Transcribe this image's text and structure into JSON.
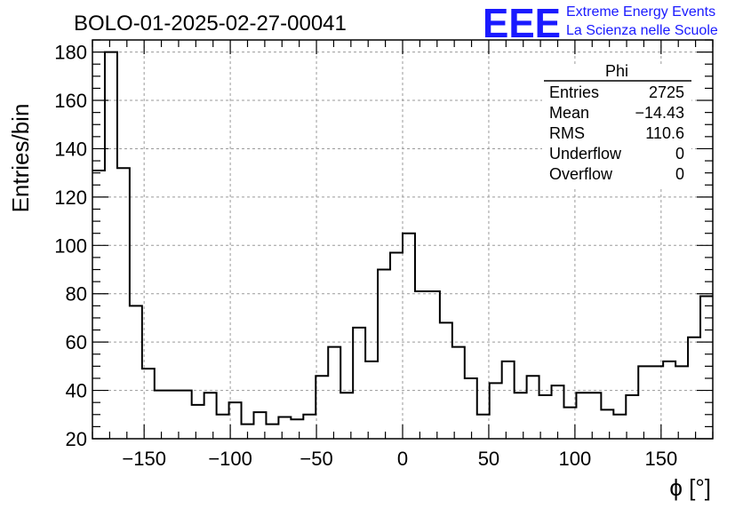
{
  "chart_data": {
    "type": "histogram",
    "title": "BOLO-01-2025-02-27-00041",
    "xlabel": "ϕ [°]",
    "ylabel": "Entries/bin",
    "xlim": [
      -180,
      180
    ],
    "ylim": [
      20,
      185
    ],
    "bin_width": 7.2,
    "bins_start": -180,
    "values": [
      131,
      180,
      132,
      75,
      49,
      40,
      40,
      40,
      34,
      39,
      30,
      35,
      26,
      31,
      26,
      29,
      28,
      30,
      46,
      58,
      39,
      66,
      52,
      90,
      97,
      105,
      81,
      81,
      68,
      58,
      45,
      30,
      43,
      52,
      39,
      46,
      38,
      42,
      33,
      39,
      39,
      32,
      30,
      38,
      50,
      50,
      52,
      50,
      62,
      79
    ],
    "xticks": [
      -150,
      -100,
      -50,
      0,
      50,
      100,
      150
    ],
    "xtick_labels": [
      "−150",
      "−100",
      "−50",
      "0",
      "50",
      "100",
      "150"
    ],
    "yticks": [
      20,
      40,
      60,
      80,
      100,
      120,
      140,
      160,
      180
    ],
    "ytick_labels": [
      "20",
      "40",
      "60",
      "80",
      "100",
      "120",
      "140",
      "160",
      "180"
    ],
    "grid": true,
    "line_color": "#000000",
    "grid_color": "#9a9a9a"
  },
  "stats_box": {
    "title": "Phi",
    "rows": [
      {
        "label": "Entries",
        "value": "2725"
      },
      {
        "label": "Mean",
        "value": "−14.43"
      },
      {
        "label": "RMS",
        "value": "110.6"
      },
      {
        "label": "Underflow",
        "value": "0"
      },
      {
        "label": "Overflow",
        "value": "0"
      }
    ]
  },
  "logo": {
    "mark": "EEE",
    "line1": "Extreme Energy Events",
    "line2": "La Scienza nelle Scuole",
    "color": "#1a1aff"
  }
}
